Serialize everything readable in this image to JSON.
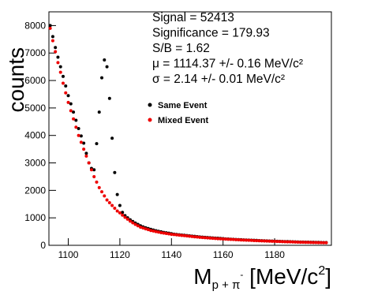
{
  "chart_data": {
    "type": "scatter",
    "y_label": "counts",
    "x_label": [
      "M",
      "p + π",
      "-",
      " [MeV/c",
      "2",
      "]"
    ],
    "annotations": [
      "Signal = 52413",
      "Significance = 179.93",
      "S/B = 1.62",
      "μ = 1114.37 +/- 0.16 MeV/c²",
      "σ = 2.14 +/- 0.01 MeV/c²"
    ],
    "xlim": [
      1092.5,
      1202
    ],
    "ylim": [
      0,
      8500
    ],
    "xticks": [
      1100,
      1120,
      1140,
      1160,
      1180
    ],
    "yticks": [
      0,
      1000,
      2000,
      3000,
      4000,
      5000,
      6000,
      7000,
      8000
    ],
    "x": [
      1093,
      1094,
      1095,
      1096,
      1097,
      1098,
      1099,
      1100,
      1101,
      1102,
      1103,
      1104,
      1105,
      1106,
      1107,
      1108,
      1109,
      1110,
      1111,
      1112,
      1113,
      1114,
      1115,
      1116,
      1117,
      1118,
      1119,
      1120,
      1121,
      1122,
      1123,
      1124,
      1125,
      1126,
      1127,
      1128,
      1129,
      1130,
      1131,
      1132,
      1133,
      1134,
      1135,
      1136,
      1137,
      1138,
      1139,
      1140,
      1141,
      1142,
      1143,
      1144,
      1145,
      1146,
      1147,
      1148,
      1149,
      1150,
      1151,
      1152,
      1153,
      1154,
      1155,
      1156,
      1157,
      1158,
      1159,
      1160,
      1161,
      1162,
      1163,
      1164,
      1165,
      1166,
      1167,
      1168,
      1169,
      1170,
      1171,
      1172,
      1173,
      1174,
      1175,
      1176,
      1177,
      1178,
      1179,
      1180,
      1181,
      1182,
      1183,
      1184,
      1185,
      1186,
      1187,
      1188,
      1189,
      1190,
      1191,
      1192,
      1193,
      1194,
      1195,
      1196,
      1197,
      1198,
      1199,
      1200
    ],
    "series": [
      {
        "name": "Same Event",
        "color": "#000000",
        "values": [
          8000,
          7600,
          7200,
          6850,
          6500,
          6150,
          5800,
          5450,
          5150,
          4850,
          4550,
          4250,
          3980,
          3720,
          3350,
          3000,
          2800,
          2750,
          3700,
          4850,
          6100,
          6750,
          6500,
          5350,
          3900,
          2650,
          1850,
          1450,
          1200,
          1080,
          1000,
          930,
          870,
          810,
          760,
          710,
          670,
          640,
          610,
          580,
          555,
          530,
          510,
          490,
          470,
          455,
          440,
          425,
          405,
          395,
          385,
          375,
          365,
          355,
          345,
          335,
          325,
          315,
          305,
          298,
          291,
          284,
          277,
          270,
          263,
          257,
          251,
          245,
          233,
          228,
          223,
          218,
          213,
          208,
          203,
          198,
          194,
          190,
          186,
          182,
          178,
          174,
          170,
          166,
          162,
          158,
          154,
          150,
          147,
          144,
          141,
          138,
          135,
          132,
          129,
          126,
          123,
          120,
          118,
          116,
          114,
          112,
          110,
          108,
          106,
          104,
          102,
          100
        ]
      },
      {
        "name": "Mixed Event",
        "color": "#ee0000",
        "values": [
          7900,
          7450,
          7050,
          6650,
          6300,
          5900,
          5550,
          5200,
          4900,
          4600,
          4300,
          4000,
          3750,
          3500,
          3250,
          3000,
          2750,
          2500,
          2300,
          2100,
          1950,
          1800,
          1650,
          1550,
          1450,
          1350,
          1250,
          1180,
          1100,
          1020,
          950,
          880,
          820,
          760,
          710,
          660,
          630,
          600,
          570,
          540,
          520,
          500,
          480,
          460,
          445,
          430,
          415,
          400,
          390,
          380,
          370,
          360,
          350,
          340,
          330,
          320,
          310,
          300,
          290,
          283,
          276,
          269,
          262,
          255,
          248,
          242,
          236,
          230,
          225,
          220,
          215,
          210,
          205,
          200,
          195,
          190,
          186,
          182,
          178,
          174,
          170,
          166,
          162,
          158,
          154,
          150,
          146,
          142,
          139,
          136,
          133,
          130,
          127,
          124,
          121,
          118,
          115,
          112,
          110,
          108,
          106,
          104,
          102,
          100,
          98,
          96,
          94,
          92
        ]
      }
    ]
  }
}
